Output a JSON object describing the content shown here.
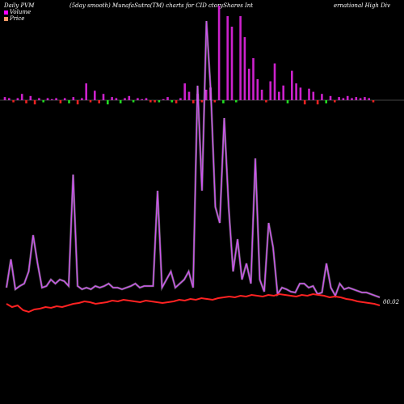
{
  "header": {
    "left": "Daily PVM",
    "center": "(5day smooth) MunafaSutra(TM) charts for CID",
    "mid": "ctoryShares Int",
    "right": "ernational High Div"
  },
  "legend": [
    {
      "label": "Volume",
      "color": "#ff00ff"
    },
    {
      "label": "Price",
      "color": "#ff9966"
    }
  ],
  "colors": {
    "volume_line": "#cc55ee",
    "price_line": "#ff2222",
    "bar_up": "#cc22cc",
    "bar_down": "#ee2222",
    "bar_green": "#22dd22",
    "axis": "#888888"
  },
  "chart_data": {
    "type": "line",
    "price_label": "00.02",
    "volume_bars": [
      3,
      2,
      -2,
      2,
      6,
      -3,
      4,
      -4,
      2,
      -2,
      2,
      1,
      2,
      -3,
      2,
      -3,
      3,
      -4,
      2,
      16,
      -2,
      9,
      -3,
      6,
      -4,
      3,
      2,
      -3,
      2,
      4,
      -2,
      2,
      1,
      2,
      -2,
      -2,
      -2,
      1,
      3,
      -2,
      -3,
      2,
      16,
      8,
      -3,
      6,
      -2,
      10,
      12,
      -2,
      90,
      -3,
      80,
      70,
      -2,
      80,
      60,
      30,
      40,
      20,
      10,
      -2,
      18,
      35,
      8,
      14,
      -3,
      28,
      16,
      12,
      -4,
      11,
      8,
      -4,
      6,
      -3,
      4,
      -2,
      3,
      2,
      4,
      2,
      3,
      2,
      3,
      2,
      -2
    ],
    "volume_line": [
      20,
      55,
      18,
      22,
      25,
      40,
      85,
      50,
      20,
      22,
      30,
      25,
      30,
      28,
      22,
      160,
      22,
      18,
      20,
      18,
      22,
      20,
      22,
      25,
      20,
      20,
      18,
      20,
      22,
      25,
      20,
      22,
      22,
      22,
      140,
      20,
      30,
      40,
      20,
      25,
      30,
      40,
      20,
      270,
      140,
      350,
      260,
      120,
      100,
      230,
      120,
      40,
      80,
      30,
      50,
      25,
      180,
      30,
      15,
      100,
      70,
      12,
      20,
      18,
      15,
      14,
      25,
      25,
      20,
      22,
      12,
      14,
      50,
      20,
      10,
      25,
      18,
      20,
      18,
      16,
      14,
      14,
      12,
      10,
      8
    ],
    "price_line": [
      22,
      18,
      20,
      14,
      12,
      15,
      16,
      18,
      17,
      19,
      18,
      20,
      22,
      23,
      25,
      24,
      22,
      23,
      24,
      26,
      25,
      27,
      26,
      25,
      24,
      26,
      25,
      24,
      23,
      24,
      25,
      27,
      26,
      28,
      27,
      29,
      28,
      27,
      29,
      30,
      31,
      30,
      32,
      31,
      33,
      32,
      31,
      33,
      32,
      34,
      33,
      32,
      31,
      33,
      32,
      34,
      33,
      32,
      30,
      31,
      30,
      28,
      27,
      25,
      24,
      23,
      22,
      20
    ]
  }
}
